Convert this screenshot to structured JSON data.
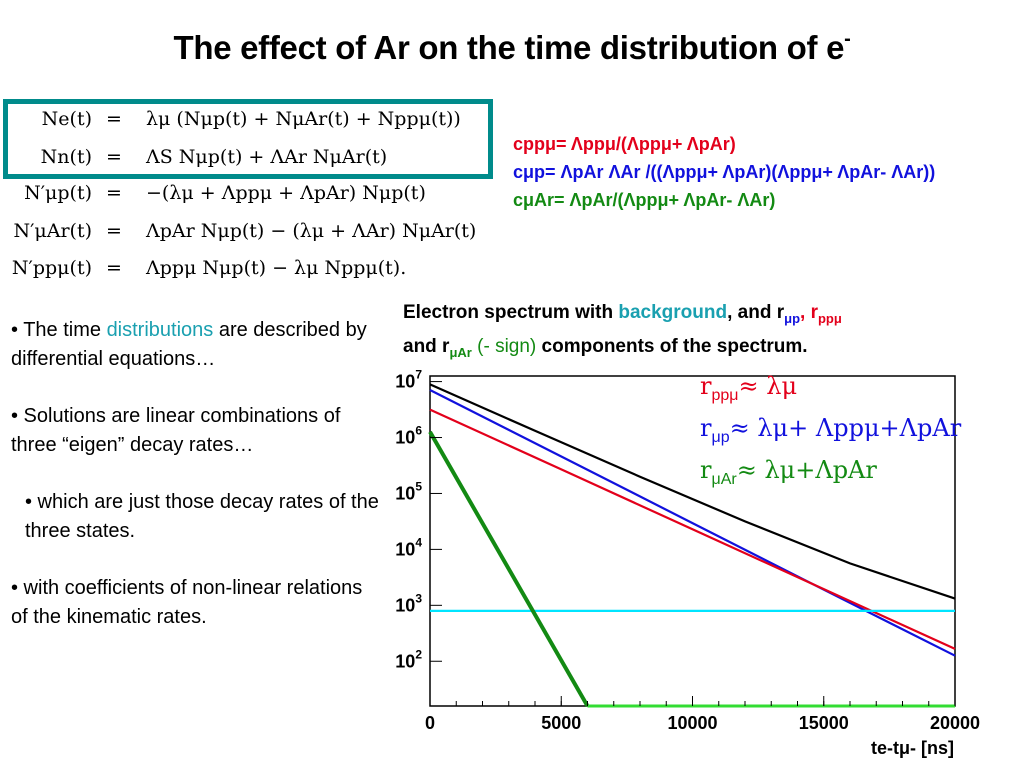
{
  "slide": {
    "title": "The effect of Ar on the time distribution of e",
    "title_sup": "-"
  },
  "equations": [
    {
      "lhs": "Ne(t)",
      "rhs": "λμ (Nμp(t) + NμAr(t) + Nppμ(t))"
    },
    {
      "lhs": "Nn(t)",
      "rhs": "ΛS Nμp(t) + ΛAr NμAr(t)"
    },
    {
      "lhs": "N′μp(t)",
      "rhs": "−(λμ + Λppμ + ΛpAr) Nμp(t)"
    },
    {
      "lhs": "N′μAr(t)",
      "rhs": "ΛpAr Nμp(t) − (λμ + ΛAr) NμAr(t)"
    },
    {
      "lhs": "N′ppμ(t)",
      "rhs": "Λppμ Nμp(t) − λμ Nppμ(t)."
    }
  ],
  "coefficients": [
    "cppμ= Λppμ/(Λppμ+ ΛpAr)",
    "cμp= ΛpAr ΛAr /((Λppμ+ ΛpAr)(Λppμ+ ΛpAr- ΛAr))",
    "cμAr= ΛpAr/(Λppμ+ ΛpAr- ΛAr)"
  ],
  "bullets": [
    {
      "pre": "• The time ",
      "highlight": "distributions",
      "post": " are described by differential equations…"
    },
    {
      "text": "• Solutions are linear combinations of three “eigen” decay rates…"
    },
    {
      "text": "• which are just those decay rates of the three states."
    },
    {
      "text": "• with coefficients of non-linear relations of the kinematic rates."
    }
  ],
  "caption": {
    "part1": "Electron spectrum with ",
    "background": "background",
    "part2": ", and r",
    "sub1": "μp",
    "part3": ", r",
    "sub2": "ppμ",
    "part4": "and r",
    "sub3": "μAr",
    "minus_sign": " (- sign)",
    "part5": " components of the spectrum."
  },
  "legend": [
    {
      "r": "r",
      "sub": "ppμ",
      "expr": "≈ λμ"
    },
    {
      "r": "r",
      "sub": "μp",
      "expr": "≈ λμ+ Λppμ+ΛpAr"
    },
    {
      "r": "r",
      "sub": "μAr",
      "expr": "≈ λμ+ΛpAr"
    }
  ],
  "chart_data": {
    "type": "line",
    "title": "",
    "xlabel": "te-tμ- [ns]",
    "ylabel": "",
    "xlim": [
      0,
      20000
    ],
    "ylim_log10": [
      1.2,
      7.1
    ],
    "y_scale": "log",
    "x_ticks": [
      "0",
      "5000",
      "10000",
      "15000",
      "20000"
    ],
    "y_ticks": [
      "10^2",
      "10^3",
      "10^4",
      "10^5",
      "10^6",
      "10^7"
    ],
    "series": [
      {
        "color": "#000000",
        "x": [
          0,
          4000,
          8000,
          12000,
          16000,
          20000
        ],
        "y_log10": [
          6.95,
          6.12,
          5.3,
          4.5,
          3.75,
          3.12
        ]
      },
      {
        "color": "#1111dd",
        "x": [
          0,
          5000,
          10000,
          15000,
          20000
        ],
        "y_log10": [
          6.85,
          5.66,
          4.47,
          3.28,
          2.1
        ]
      },
      {
        "color": "#e3001b",
        "x": [
          0,
          5000,
          10000,
          15000,
          20000
        ],
        "y_log10": [
          6.5,
          5.43,
          4.36,
          3.29,
          2.22
        ]
      },
      {
        "color": "#00e5ff",
        "x": [
          0,
          20000
        ],
        "y_log10": [
          2.9,
          2.9
        ]
      },
      {
        "color": "#138a13",
        "x": [
          0,
          6000
        ],
        "y_log10": [
          6.1,
          1.2
        ]
      },
      {
        "color": "#33dd33",
        "x": [
          6000,
          20000
        ],
        "y_log10": [
          1.2,
          1.2
        ]
      }
    ]
  }
}
